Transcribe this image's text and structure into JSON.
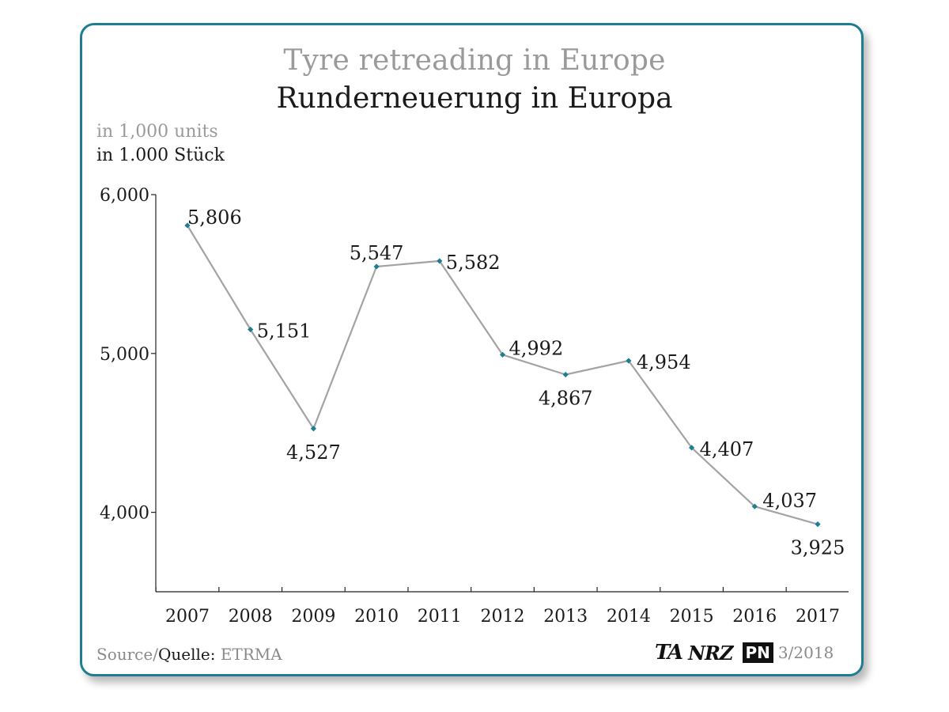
{
  "title_en": "Tyre retreading in Europe",
  "title_de": "Runderneuerung in Europa",
  "unit_en": "in 1,000 units",
  "unit_de": "in 1.000 Stück",
  "footer": {
    "source_label": "Source/",
    "source_label_de": "Quelle:",
    "source_value": "ETRMA",
    "logos": [
      "TA",
      "NRZ",
      "PN"
    ],
    "date": "3/2018"
  },
  "colors": {
    "frame": "#1e7d93",
    "line": "#a3a3a3",
    "marker": "#1e7d93",
    "axis": "#222222"
  },
  "chart_data": {
    "type": "line",
    "categories": [
      "2007",
      "2008",
      "2009",
      "2010",
      "2011",
      "2012",
      "2013",
      "2014",
      "2015",
      "2016",
      "2017"
    ],
    "series": [
      {
        "values": [
          5806,
          5151,
          4527,
          5547,
          5582,
          4992,
          4867,
          4954,
          4407,
          4037,
          3925
        ],
        "labels": [
          "5,806",
          "5,151",
          "4,527",
          "5,547",
          "5,582",
          "4,992",
          "4,867",
          "4,954",
          "4,407",
          "4,037",
          "3,925"
        ]
      }
    ],
    "yticks": [
      {
        "value": 4000,
        "label": "4,000"
      },
      {
        "value": 5000,
        "label": "5,000"
      },
      {
        "value": 6000,
        "label": "6,000"
      }
    ],
    "ylim": [
      3500,
      6000
    ],
    "grid": false,
    "legend": "none"
  }
}
